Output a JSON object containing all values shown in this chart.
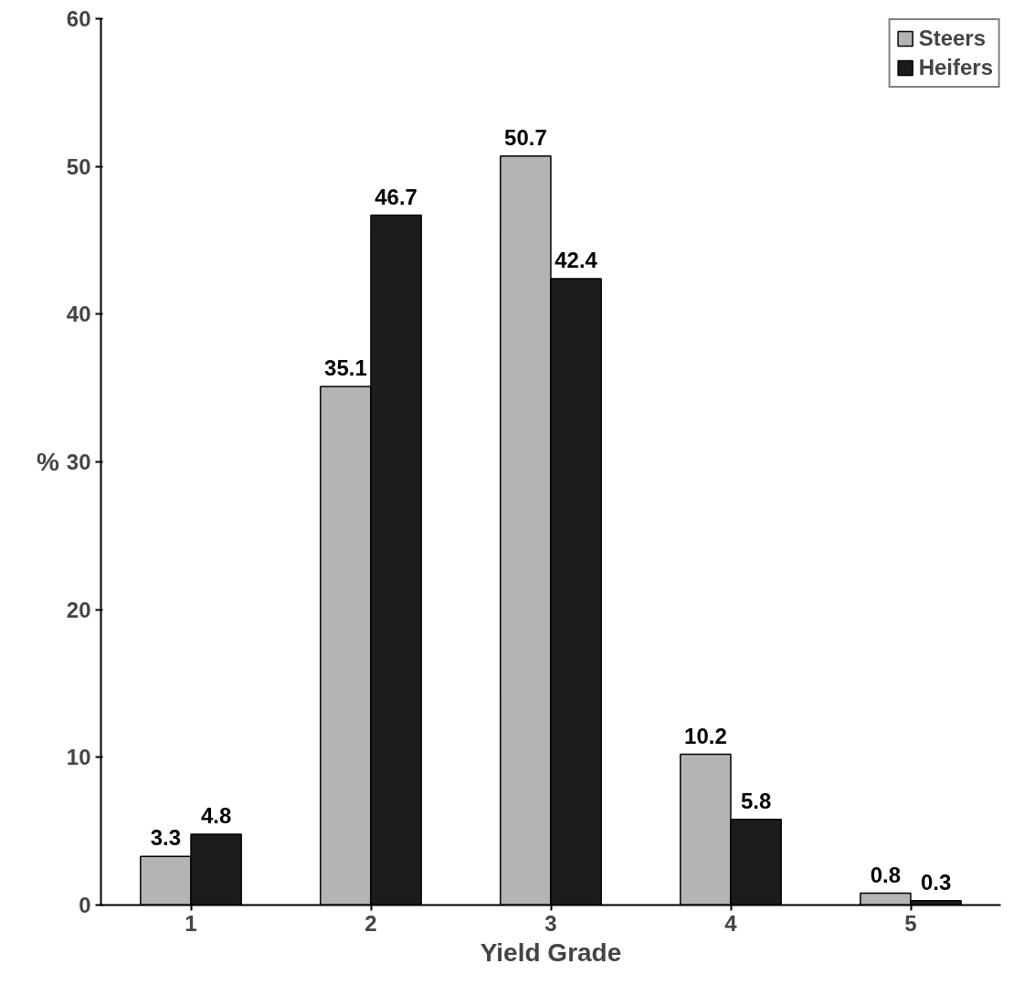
{
  "chart_data": {
    "type": "bar",
    "xlabel": "Yield Grade",
    "ylabel": "%",
    "categories": [
      "1",
      "2",
      "3",
      "4",
      "5"
    ],
    "series": [
      {
        "name": "Steers",
        "color": "#b4b4b4",
        "values": [
          3.3,
          35.1,
          50.7,
          10.2,
          0.8
        ]
      },
      {
        "name": "Heifers",
        "color": "#1c1c1c",
        "values": [
          4.8,
          46.7,
          42.4,
          5.8,
          0.3
        ]
      }
    ],
    "ylim": [
      0,
      60
    ],
    "yticks": [
      0,
      10,
      20,
      30,
      40,
      50,
      60
    ],
    "data_labels": true,
    "grid": false,
    "legend": "top right"
  }
}
